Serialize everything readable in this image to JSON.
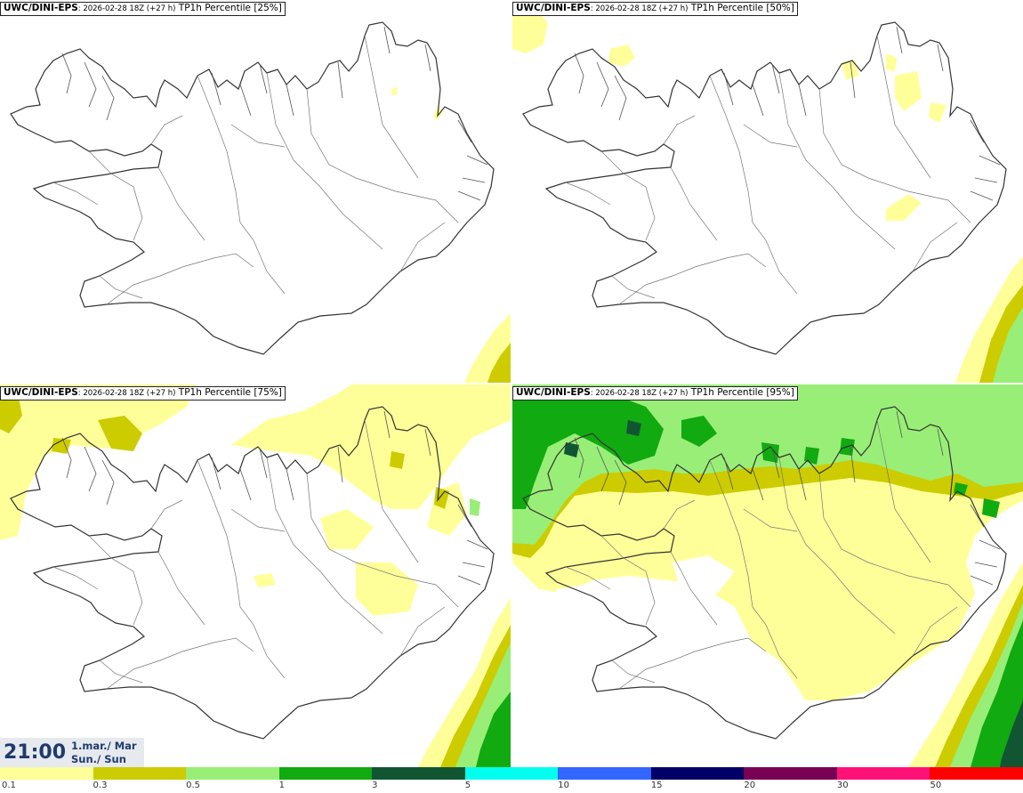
{
  "panels": [
    {
      "model": "UWC/DINI-EPS",
      "run": ": 2026-02-28 18Z (+27 h)",
      "field": " TP1h Percentile [25%]"
    },
    {
      "model": "UWC/DINI-EPS",
      "run": ": 2026-02-28 18Z (+27 h)",
      "field": " TP1h Percentile [50%]"
    },
    {
      "model": "UWC/DINI-EPS",
      "run": ": 2026-02-28 18Z (+27 h)",
      "field": " TP1h Percentile [75%]"
    },
    {
      "model": "UWC/DINI-EPS",
      "run": ": 2026-02-28 18Z (+27 h)",
      "field": " TP1h Percentile [95%]"
    }
  ],
  "timebox": {
    "time": "21:00",
    "date": "1.mar./ Mar",
    "day": "Sun./ Sun"
  },
  "legend": {
    "labels": [
      "0.1",
      "0.3",
      "0.5",
      "1",
      "3",
      "5",
      "10",
      "15",
      "20",
      "30",
      "50"
    ],
    "colors": [
      "#ffff99",
      "#cccc00",
      "#99ee77",
      "#11aa11",
      "#115533",
      "#00ffee",
      "#3366ff",
      "#000066",
      "#770055",
      "#ff1177",
      "#ff0000"
    ]
  }
}
